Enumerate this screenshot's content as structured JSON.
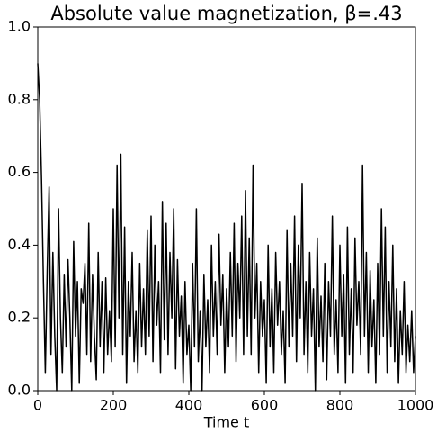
{
  "chart_data": {
    "type": "line",
    "title": "Absolute value magnetization, β=.43",
    "xlabel": "Time t",
    "color": "#000000",
    "x": [
      0,
      5,
      10,
      15,
      20,
      25,
      30,
      35,
      40,
      45,
      50,
      55,
      60,
      65,
      70,
      75,
      80,
      85,
      90,
      95,
      100,
      105,
      110,
      115,
      120,
      125,
      130,
      135,
      140,
      145,
      150,
      155,
      160,
      165,
      170,
      175,
      180,
      185,
      190,
      195,
      200,
      205,
      210,
      215,
      220,
      225,
      230,
      235,
      240,
      245,
      250,
      255,
      260,
      265,
      270,
      275,
      280,
      285,
      290,
      295,
      300,
      305,
      310,
      315,
      320,
      325,
      330,
      335,
      340,
      345,
      350,
      355,
      360,
      365,
      370,
      375,
      380,
      385,
      390,
      395,
      400,
      405,
      410,
      415,
      420,
      425,
      430,
      435,
      440,
      445,
      450,
      455,
      460,
      465,
      470,
      475,
      480,
      485,
      490,
      495,
      500,
      505,
      510,
      515,
      520,
      525,
      530,
      535,
      540,
      545,
      550,
      555,
      560,
      565,
      570,
      575,
      580,
      585,
      590,
      595,
      600,
      605,
      610,
      615,
      620,
      625,
      630,
      635,
      640,
      645,
      650,
      655,
      660,
      665,
      670,
      675,
      680,
      685,
      690,
      695,
      700,
      705,
      710,
      715,
      720,
      725,
      730,
      735,
      740,
      745,
      750,
      755,
      760,
      765,
      770,
      775,
      780,
      785,
      790,
      795,
      800,
      805,
      810,
      815,
      820,
      825,
      830,
      835,
      840,
      845,
      850,
      855,
      860,
      865,
      870,
      875,
      880,
      885,
      890,
      895,
      900,
      905,
      910,
      915,
      920,
      925,
      930,
      935,
      940,
      945,
      950,
      955,
      960,
      965,
      970,
      975,
      980,
      985,
      990,
      995,
      1000
    ],
    "values": [
      0.9,
      0.8,
      0.58,
      0.3,
      0.05,
      0.33,
      0.56,
      0.1,
      0.38,
      0.15,
      0.0,
      0.5,
      0.2,
      0.05,
      0.32,
      0.12,
      0.36,
      0.2,
      0.0,
      0.41,
      0.15,
      0.3,
      0.02,
      0.28,
      0.24,
      0.35,
      0.1,
      0.46,
      0.08,
      0.32,
      0.15,
      0.03,
      0.38,
      0.12,
      0.3,
      0.05,
      0.31,
      0.1,
      0.22,
      0.08,
      0.5,
      0.12,
      0.62,
      0.2,
      0.65,
      0.1,
      0.45,
      0.02,
      0.3,
      0.15,
      0.38,
      0.08,
      0.22,
      0.05,
      0.35,
      0.12,
      0.28,
      0.1,
      0.44,
      0.15,
      0.48,
      0.08,
      0.4,
      0.18,
      0.3,
      0.05,
      0.52,
      0.14,
      0.46,
      0.1,
      0.38,
      0.2,
      0.5,
      0.06,
      0.36,
      0.15,
      0.26,
      0.02,
      0.3,
      0.1,
      0.18,
      0.0,
      0.35,
      0.12,
      0.5,
      0.08,
      0.22,
      0.0,
      0.32,
      0.12,
      0.25,
      0.05,
      0.4,
      0.15,
      0.3,
      0.1,
      0.43,
      0.18,
      0.32,
      0.05,
      0.28,
      0.12,
      0.38,
      0.15,
      0.46,
      0.08,
      0.35,
      0.2,
      0.48,
      0.1,
      0.55,
      0.15,
      0.42,
      0.1,
      0.62,
      0.2,
      0.35,
      0.05,
      0.3,
      0.15,
      0.25,
      0.02,
      0.4,
      0.12,
      0.28,
      0.05,
      0.38,
      0.18,
      0.3,
      0.1,
      0.22,
      0.02,
      0.44,
      0.12,
      0.35,
      0.15,
      0.48,
      0.08,
      0.4,
      0.2,
      0.57,
      0.1,
      0.3,
      0.05,
      0.38,
      0.15,
      0.28,
      0.0,
      0.42,
      0.12,
      0.26,
      0.08,
      0.35,
      0.03,
      0.3,
      0.15,
      0.48,
      0.1,
      0.25,
      0.05,
      0.4,
      0.15,
      0.32,
      0.02,
      0.45,
      0.1,
      0.28,
      0.05,
      0.42,
      0.18,
      0.3,
      0.1,
      0.62,
      0.15,
      0.38,
      0.05,
      0.33,
      0.12,
      0.25,
      0.02,
      0.35,
      0.1,
      0.5,
      0.15,
      0.45,
      0.05,
      0.3,
      0.12,
      0.4,
      0.08,
      0.28,
      0.02,
      0.22,
      0.1,
      0.3,
      0.05,
      0.18,
      0.08,
      0.22,
      0.05,
      0.15
    ],
    "xlim": [
      0,
      1000
    ],
    "xticks": [
      0,
      200,
      400,
      600,
      800,
      1000
    ],
    "ylim": [
      0,
      1
    ],
    "yticks": [
      {
        "value": 0,
        "label": "0.0"
      },
      0.2,
      0.4,
      0.6,
      0.8,
      {
        "value": 1,
        "label": "1.0"
      }
    ],
    "grid": false
  }
}
